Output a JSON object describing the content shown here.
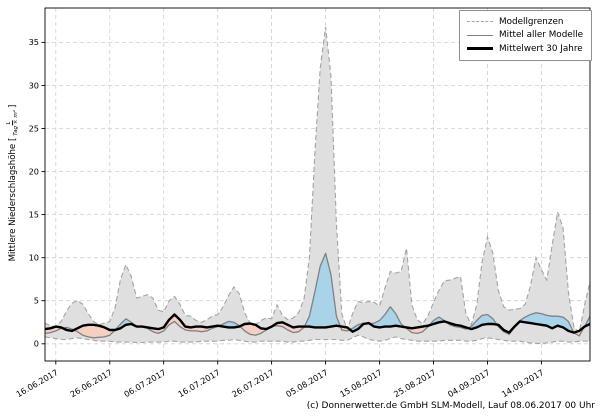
{
  "figure": {
    "ylabel_prefix": "Mittlere Niederschlagshöhe [",
    "ylabel_frac_num": "L",
    "ylabel_frac_den": "Tag × m²",
    "ylabel_suffix": "]",
    "footer": "(c) Donnerwetter.de GmbH SLM-Modell, Lauf 08.06.2017 00 Uhr"
  },
  "legend": {
    "items": [
      {
        "label": "Modellgrenzen",
        "style": "dashed-gray"
      },
      {
        "label": "Mittel aller Modelle",
        "style": "solid-gray"
      },
      {
        "label": "Mittelwert 30 Jahre",
        "style": "solid-black-thick"
      }
    ]
  },
  "colors": {
    "band_fill": "#dfdfdf",
    "band_edge": "#a3a3a3",
    "above_fill": "#a9d3e9",
    "below_fill": "#f6cfc3",
    "model_mean": "#808080",
    "climate_mean": "#000000",
    "grid": "#cfcfcf",
    "axis": "#000000"
  },
  "chart_data": {
    "type": "area",
    "title": "",
    "xlabel": "",
    "ylabel": "Mittlere Niederschlagshöhe [L/(Tag × m²)]",
    "x_start_date": "14.06.2017",
    "x_step_days": 1,
    "x_tick_labels": [
      "16.06.2017",
      "26.06.2017",
      "06.07.2017",
      "16.07.2017",
      "26.07.2017",
      "05.08.2017",
      "15.08.2017",
      "25.08.2017",
      "04.09.2017",
      "14.09.2017"
    ],
    "x_tick_day_index": [
      2,
      12,
      22,
      32,
      42,
      52,
      62,
      72,
      82,
      92
    ],
    "y_ticks": [
      0,
      5,
      10,
      15,
      20,
      25,
      30,
      35
    ],
    "ylim": [
      -2,
      39
    ],
    "grid": true,
    "legend_position": "upper right",
    "series": [
      {
        "name": "Modellgrenzen (Maximum)",
        "values": [
          2.4,
          2.1,
          2.0,
          2.6,
          3.8,
          4.7,
          5.0,
          4.6,
          3.5,
          2.6,
          2.2,
          2.4,
          2.6,
          4.2,
          7.5,
          9.2,
          7.8,
          5.3,
          5.5,
          5.7,
          5.3,
          3.9,
          3.7,
          5.0,
          5.5,
          4.6,
          3.3,
          3.2,
          2.7,
          2.5,
          2.8,
          3.2,
          3.4,
          4.3,
          5.6,
          6.6,
          5.8,
          3.6,
          2.4,
          2.2,
          2.7,
          3.0,
          2.9,
          4.5,
          3.3,
          2.8,
          3.0,
          3.6,
          5.2,
          10.0,
          22.0,
          32.0,
          36.8,
          31.0,
          14.0,
          3.5,
          1.6,
          3.5,
          4.9,
          4.8,
          4.9,
          4.8,
          4.4,
          6.5,
          8.4,
          8.2,
          8.4,
          11.1,
          4.5,
          2.8,
          2.3,
          3.3,
          4.8,
          6.2,
          7.3,
          7.4,
          7.6,
          7.8,
          3.5,
          2.2,
          4.5,
          9.5,
          12.4,
          10.5,
          6.2,
          4.3,
          3.9,
          4.0,
          4.1,
          4.6,
          6.8,
          10.0,
          8.6,
          7.4,
          11.5,
          15.3,
          13.5,
          6.0,
          2.0,
          1.3,
          4.5,
          7.2
        ]
      },
      {
        "name": "Modellgrenzen (Minimum)",
        "values": [
          0.8,
          0.7,
          0.6,
          0.5,
          0.5,
          0.6,
          0.7,
          0.6,
          0.5,
          0.4,
          0.3,
          0.3,
          0.3,
          0.2,
          0.2,
          0.2,
          0.2,
          0.15,
          0.15,
          0.2,
          0.2,
          0.2,
          0.2,
          0.3,
          0.3,
          0.2,
          0.2,
          0.2,
          0.2,
          0.3,
          0.3,
          0.3,
          0.3,
          0.4,
          0.4,
          0.5,
          0.4,
          0.3,
          0.2,
          0.2,
          0.3,
          0.3,
          0.3,
          0.3,
          0.3,
          0.2,
          0.2,
          0.3,
          0.3,
          0.4,
          0.5,
          0.5,
          0.5,
          0.5,
          0.5,
          0.4,
          0.4,
          0.7,
          1.0,
          0.8,
          0.5,
          0.4,
          0.3,
          0.4,
          0.6,
          0.8,
          0.6,
          0.5,
          0.4,
          0.3,
          0.3,
          0.3,
          0.3,
          0.3,
          0.4,
          0.4,
          0.4,
          0.4,
          0.3,
          0.3,
          0.4,
          0.6,
          0.7,
          0.6,
          0.5,
          0.4,
          0.3,
          0.3,
          0.3,
          0.2,
          0.1,
          0.05,
          0.05,
          0.1,
          0.2,
          0.3,
          0.3,
          0.2,
          0.2,
          0.3,
          0.3,
          0.3
        ]
      },
      {
        "name": "Mittel aller Modelle",
        "values": [
          1.2,
          1.3,
          1.5,
          1.8,
          1.9,
          1.7,
          1.4,
          1.0,
          0.8,
          0.7,
          0.75,
          0.8,
          1.0,
          1.6,
          2.3,
          2.9,
          2.5,
          2.0,
          2.0,
          1.8,
          1.4,
          1.2,
          1.5,
          2.2,
          2.6,
          2.0,
          1.6,
          1.5,
          1.5,
          1.4,
          1.5,
          1.8,
          2.0,
          2.3,
          2.6,
          2.5,
          2.1,
          1.5,
          1.1,
          1.0,
          1.2,
          1.6,
          2.0,
          2.1,
          2.0,
          1.6,
          1.3,
          1.4,
          1.9,
          3.2,
          6.0,
          9.0,
          10.5,
          8.0,
          3.2,
          1.6,
          1.5,
          1.8,
          2.2,
          2.4,
          2.3,
          2.4,
          2.7,
          3.4,
          4.3,
          3.5,
          2.3,
          1.8,
          1.3,
          1.2,
          1.4,
          2.0,
          2.7,
          3.1,
          2.7,
          2.2,
          2.0,
          1.9,
          1.7,
          2.0,
          2.7,
          3.3,
          3.4,
          2.9,
          2.0,
          1.4,
          1.1,
          1.9,
          2.7,
          3.1,
          3.4,
          3.6,
          3.5,
          3.3,
          3.2,
          3.2,
          3.1,
          2.6,
          1.3,
          0.9,
          2.0,
          3.2
        ]
      },
      {
        "name": "Mittelwert 30 Jahre",
        "values": [
          1.7,
          1.8,
          2.0,
          1.9,
          1.6,
          1.5,
          1.8,
          2.1,
          2.2,
          2.2,
          2.1,
          1.9,
          1.6,
          1.6,
          1.8,
          2.2,
          2.3,
          2.0,
          2.0,
          1.9,
          1.8,
          1.7,
          1.9,
          2.8,
          3.4,
          2.8,
          2.0,
          1.9,
          2.0,
          2.0,
          1.9,
          2.0,
          2.1,
          2.0,
          1.9,
          1.9,
          2.0,
          2.3,
          2.35,
          2.2,
          1.8,
          1.7,
          2.0,
          2.4,
          2.5,
          2.2,
          1.9,
          2.0,
          2.0,
          2.0,
          1.9,
          1.9,
          1.9,
          2.0,
          2.1,
          2.0,
          1.9,
          1.4,
          1.7,
          2.3,
          2.4,
          2.0,
          1.9,
          2.0,
          2.0,
          2.1,
          2.0,
          1.9,
          1.8,
          1.9,
          2.0,
          2.1,
          2.3,
          2.5,
          2.6,
          2.4,
          2.2,
          2.1,
          1.9,
          1.7,
          1.9,
          2.2,
          2.3,
          2.3,
          2.2,
          1.6,
          1.3,
          2.0,
          2.6,
          2.5,
          2.4,
          2.3,
          2.2,
          2.1,
          1.8,
          2.1,
          1.9,
          1.5,
          1.3,
          1.5,
          2.0,
          2.3
        ]
      }
    ]
  }
}
